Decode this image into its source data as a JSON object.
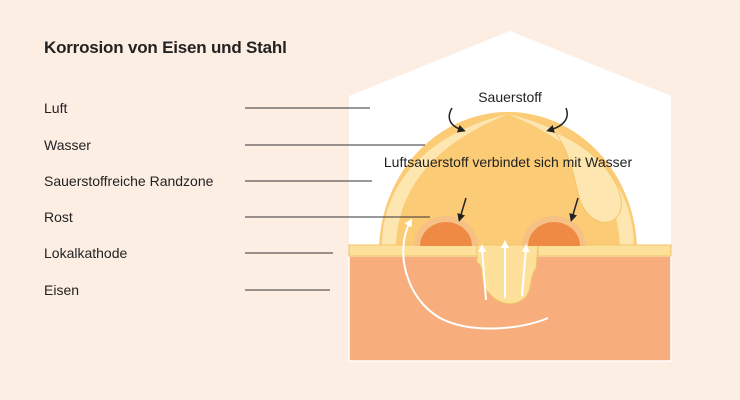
{
  "title": "Korrosion von Eisen und Stahl",
  "labels": {
    "luft": "Luft",
    "wasser": "Wasser",
    "randzone": "Sauerstoffreiche Randzone",
    "rost": "Rost",
    "lokalkathode": "Lokalkathode",
    "eisen": "Eisen"
  },
  "diagram": {
    "sauerstoff": "Sauerstoff",
    "reaction": "Luftsauerstoff verbindet sich mit Wasser"
  },
  "colors": {
    "background": "#fdeee4",
    "air": "#ffffff",
    "iron": "#f7ae7c",
    "water": "#fccb75",
    "rim_zone": "#fde6b0",
    "rust": "#ef8a45",
    "cathode": "#fde09a",
    "leader_line": "#333333"
  }
}
